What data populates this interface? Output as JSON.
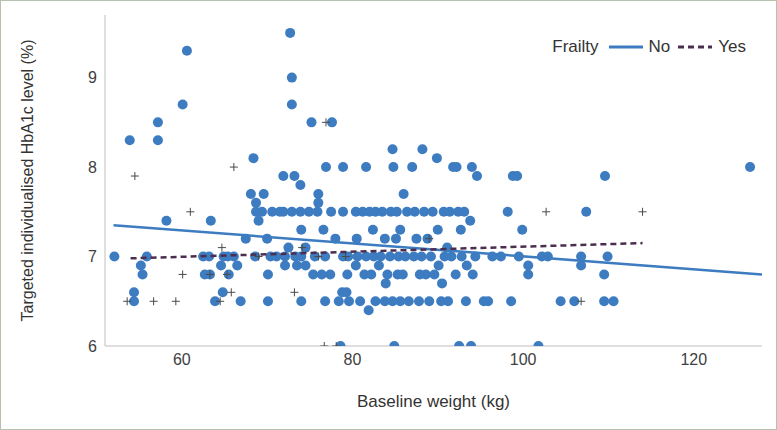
{
  "chart_data": {
    "type": "scatter",
    "x_label": "Baseline weight (kg)",
    "y_label": "Targeted individualised HbA1c level (%)",
    "legend_title": "Frailty",
    "legend": "top-right",
    "grid": false,
    "xlim": [
      51,
      128
    ],
    "xticks": [
      60,
      80,
      100,
      120
    ],
    "ylim": [
      6,
      9.7
    ],
    "yticks": [
      6,
      7,
      8,
      9
    ],
    "series": [
      {
        "name": "No",
        "color": "#3d7cc0",
        "marker": "circle",
        "x": [
          52.1,
          53.9,
          54.4,
          54.4,
          55.2,
          55.4,
          55.9,
          57.2,
          57.2,
          58.2,
          60.1,
          60.6,
          62.5,
          63.2,
          62.7,
          63.4,
          63.3,
          63.9,
          64.6,
          64.8,
          64.9,
          65.4,
          65.5,
          66.1,
          66.5,
          66.9,
          67.5,
          68.1,
          68.4,
          68.6,
          68.7,
          68.7,
          69.0,
          69.4,
          69.6,
          70.0,
          70.1,
          70.1,
          70.4,
          70.6,
          71.1,
          71.5,
          71.9,
          71.9,
          72.1,
          72.1,
          72.5,
          72.7,
          72.9,
          72.9,
          72.9,
          73.2,
          73.3,
          73.5,
          73.9,
          73.9,
          74.0,
          74.0,
          74.0,
          74.5,
          74.5,
          74.9,
          75.2,
          75.4,
          75.6,
          75.9,
          76.0,
          76.0,
          76.4,
          76.6,
          76.8,
          76.8,
          76.9,
          77.4,
          77.6,
          77.5,
          78.0,
          78.4,
          78.6,
          78.8,
          78.9,
          78.9,
          78.9,
          79.3,
          79.4,
          79.5,
          79.6,
          80.4,
          80.4,
          80.5,
          80.6,
          80.9,
          81.2,
          81.4,
          81.6,
          81.6,
          81.9,
          82.0,
          82.2,
          82.4,
          82.5,
          82.7,
          82.7,
          83.1,
          83.3,
          83.5,
          83.8,
          83.8,
          83.9,
          84.1,
          84.4,
          84.5,
          84.7,
          84.7,
          84.8,
          84.9,
          85.1,
          85.2,
          85.3,
          85.4,
          85.6,
          85.6,
          85.9,
          86.0,
          86.2,
          86.4,
          86.6,
          87.0,
          87.2,
          87.3,
          87.5,
          87.8,
          87.9,
          88.1,
          88.2,
          88.4,
          88.6,
          88.8,
          89.0,
          89.2,
          89.4,
          89.6,
          89.9,
          90.0,
          90.1,
          90.4,
          90.5,
          90.7,
          90.8,
          91.1,
          91.2,
          91.4,
          91.6,
          91.8,
          92.1,
          92.2,
          92.4,
          92.5,
          92.7,
          92.8,
          93.1,
          93.3,
          93.4,
          93.8,
          93.9,
          94.0,
          94.1,
          94.4,
          94.6,
          95.4,
          95.9,
          96.4,
          97.4,
          98.2,
          98.6,
          98.8,
          99.3,
          99.5,
          99.9,
          100.6,
          100.6,
          101.8,
          102.2,
          102.9,
          104.4,
          106.0,
          106.8,
          106.8,
          107.4,
          109.5,
          109.5,
          109.6,
          109.9,
          110.6,
          126.6
        ],
        "values": [
          7.0,
          8.3,
          6.5,
          6.6,
          6.9,
          6.8,
          7.0,
          8.5,
          8.3,
          7.4,
          8.7,
          9.3,
          7.0,
          7.0,
          6.8,
          7.4,
          6.8,
          6.5,
          6.9,
          6.6,
          7.0,
          7.0,
          6.8,
          7.0,
          6.9,
          6.5,
          7.2,
          7.7,
          8.1,
          7.0,
          7.5,
          7.6,
          7.4,
          7.5,
          7.7,
          7.2,
          6.8,
          6.5,
          7.0,
          7.5,
          7.0,
          7.5,
          7.9,
          7.5,
          7.0,
          6.9,
          7.1,
          9.5,
          9.0,
          8.7,
          7.5,
          7.9,
          7.0,
          6.9,
          7.5,
          7.8,
          7.3,
          6.5,
          7.0,
          7.1,
          6.9,
          7.5,
          8.5,
          6.8,
          7.0,
          7.5,
          7.6,
          7.7,
          6.8,
          7.3,
          6.5,
          7.0,
          8.0,
          6.8,
          8.5,
          7.5,
          7.2,
          6.5,
          6.0,
          6.6,
          8.0,
          7.5,
          7.0,
          6.6,
          6.8,
          7.0,
          6.5,
          6.9,
          7.5,
          7.2,
          7.0,
          6.5,
          7.5,
          6.8,
          8.0,
          7.0,
          6.4,
          7.5,
          6.8,
          7.3,
          7.0,
          6.5,
          7.5,
          6.9,
          7.0,
          7.5,
          6.5,
          7.2,
          6.7,
          6.8,
          7.0,
          7.5,
          6.5,
          8.2,
          8.0,
          6.0,
          7.2,
          7.5,
          6.8,
          7.0,
          6.5,
          7.3,
          6.8,
          7.7,
          7.0,
          7.5,
          6.5,
          8.0,
          7.0,
          7.5,
          7.2,
          6.5,
          6.8,
          7.0,
          8.2,
          7.5,
          6.8,
          7.2,
          6.5,
          7.0,
          7.5,
          6.8,
          8.1,
          7.3,
          6.9,
          6.5,
          6.7,
          7.5,
          7.0,
          7.1,
          6.5,
          7.5,
          7.0,
          8.0,
          6.8,
          8.0,
          7.5,
          6.0,
          7.3,
          7.0,
          7.5,
          6.5,
          6.9,
          7.4,
          6.0,
          8.0,
          6.8,
          7.0,
          7.9,
          6.5,
          6.5,
          7.0,
          7.0,
          7.5,
          6.5,
          7.9,
          7.9,
          7.0,
          7.3,
          6.9,
          6.8,
          6.0,
          7.0,
          7.0,
          6.5,
          6.5,
          7.0,
          6.9,
          7.5,
          6.5,
          6.8,
          7.9,
          7.0,
          6.5,
          8.0
        ],
        "trend": {
          "color": "#3d7cc0",
          "line_style": "solid",
          "x": [
            52,
            128
          ],
          "values": [
            7.35,
            6.8
          ]
        }
      },
      {
        "name": "Yes",
        "color": "#4a4a4a",
        "marker": "plus",
        "x": [
          53.6,
          54.5,
          56.7,
          59.3,
          60.1,
          61.0,
          63.3,
          64.5,
          64.7,
          65.3,
          65.8,
          66.1,
          69.0,
          73.2,
          74.1,
          76.0,
          76.9,
          76.7,
          78.1,
          79.2,
          89.0,
          102.7,
          106.8,
          114.0
        ],
        "values": [
          6.5,
          7.9,
          6.5,
          6.5,
          6.8,
          7.5,
          6.8,
          6.5,
          7.1,
          6.8,
          6.6,
          8.0,
          7.0,
          6.6,
          7.1,
          7.0,
          8.5,
          6.0,
          6.0,
          7.0,
          7.2,
          7.5,
          6.5,
          7.5
        ],
        "trend": {
          "color": "#4b2d50",
          "line_style": "dashed",
          "x": [
            54,
            114
          ],
          "values": [
            6.98,
            7.15
          ]
        }
      }
    ]
  }
}
